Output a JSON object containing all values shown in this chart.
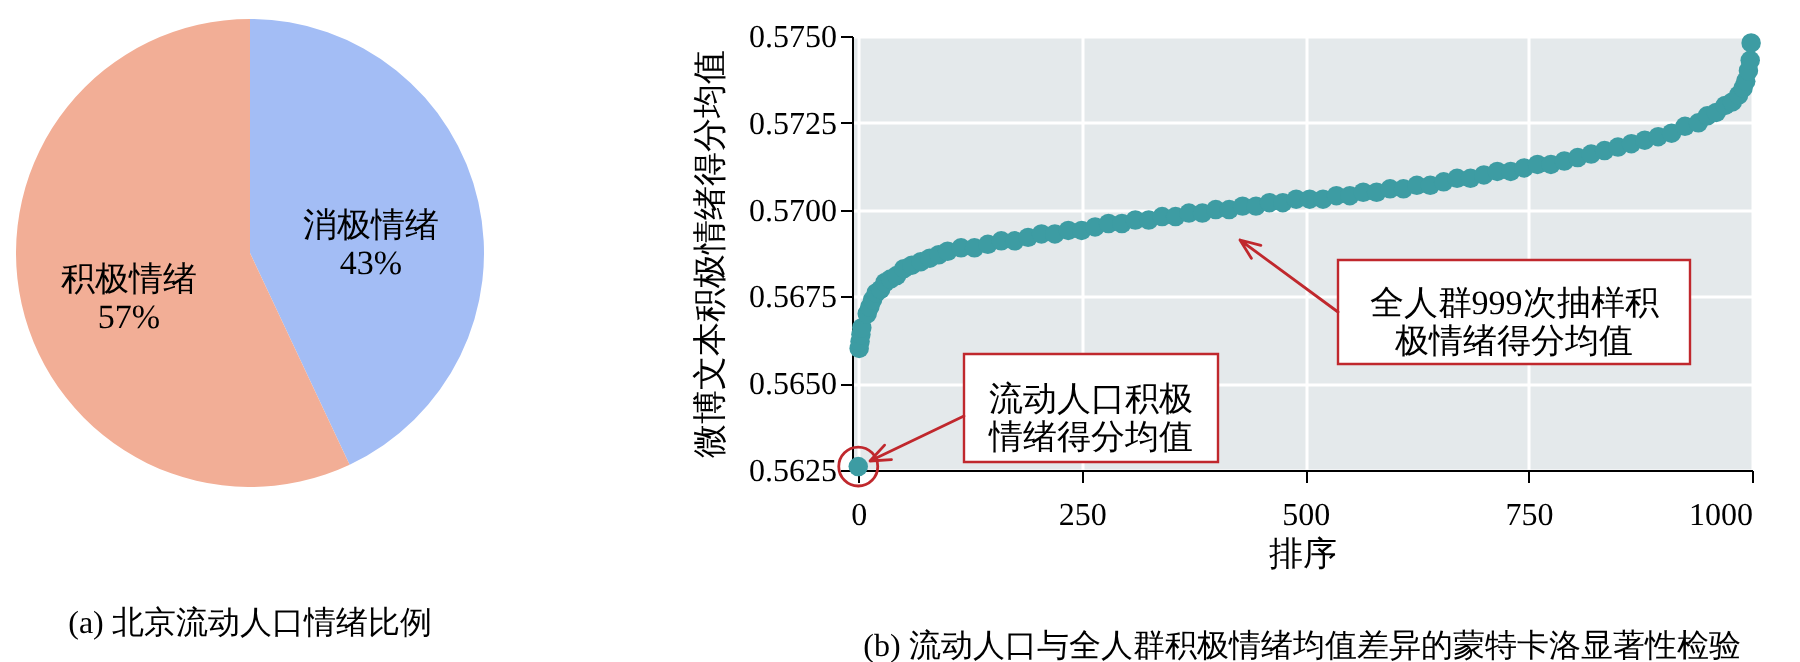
{
  "chart_data": [
    {
      "type": "pie",
      "title": "(a) 北京流动人口情绪比例",
      "categories": [
        "消极情绪",
        "积极情绪"
      ],
      "values": [
        43,
        57
      ],
      "colors": [
        "#a3bdf5",
        "#f2ae96"
      ],
      "value_labels": [
        "43%",
        "57%"
      ]
    },
    {
      "type": "scatter",
      "title": "(b) 流动人口与全人群积极情绪均值差异的蒙特卡洛显著性检验",
      "xlabel": "排序",
      "ylabel": "微博文本积极情绪得分均值",
      "xlim": [
        -7,
        1000
      ],
      "xticks": [
        0,
        250,
        500,
        750,
        1000
      ],
      "ylim": [
        0.5625,
        0.575
      ],
      "yticks": [
        {
          "value": 0.5625,
          "label": "0.5625"
        },
        {
          "value": 0.565,
          "label": "0.5650"
        },
        {
          "value": 0.5675,
          "label": "0.5675"
        },
        {
          "value": 0.57,
          "label": "0.5700"
        },
        {
          "value": 0.5725,
          "label": "0.5725"
        },
        {
          "value": 0.575,
          "label": "0.5750"
        }
      ],
      "grid": true,
      "marker": "circle",
      "series": [
        {
          "color": "#3d9ca3",
          "x": [
            0,
            1,
            2,
            3,
            4,
            10,
            13,
            16,
            20,
            25,
            30,
            36,
            43,
            51,
            60,
            70,
            80,
            90,
            100,
            115,
            130,
            145,
            160,
            175,
            190,
            205,
            220,
            235,
            250,
            265,
            280,
            295,
            310,
            325,
            340,
            355,
            370,
            385,
            400,
            415,
            430,
            445,
            460,
            475,
            490,
            505,
            520,
            535,
            550,
            565,
            580,
            595,
            610,
            625,
            640,
            655,
            670,
            685,
            700,
            715,
            730,
            745,
            760,
            775,
            790,
            805,
            820,
            835,
            850,
            865,
            880,
            895,
            910,
            925,
            940,
            950,
            960,
            970,
            978,
            985,
            990,
            993,
            996,
            998,
            999
          ],
          "values": [
            0.5626,
            0.566,
            0.5662,
            0.5664,
            0.5666,
            0.567,
            0.5672,
            0.5674,
            0.5676,
            0.5677,
            0.5679,
            0.568,
            0.5681,
            0.5683,
            0.5684,
            0.5685,
            0.5686,
            0.5687,
            0.5688,
            0.5689,
            0.5689,
            0.569,
            0.5691,
            0.5691,
            0.5692,
            0.5693,
            0.5693,
            0.5694,
            0.5694,
            0.5695,
            0.5696,
            0.5696,
            0.5697,
            0.5697,
            0.5698,
            0.5698,
            0.5699,
            0.5699,
            0.57,
            0.57,
            0.5701,
            0.5701,
            0.5702,
            0.5702,
            0.5703,
            0.5703,
            0.5703,
            0.5704,
            0.5704,
            0.5705,
            0.5705,
            0.5706,
            0.5706,
            0.5707,
            0.5707,
            0.5708,
            0.5709,
            0.5709,
            0.571,
            0.5711,
            0.5711,
            0.5712,
            0.5713,
            0.5713,
            0.5714,
            0.5715,
            0.5716,
            0.5717,
            0.5718,
            0.5719,
            0.572,
            0.5721,
            0.5722,
            0.5724,
            0.5725,
            0.5727,
            0.5728,
            0.573,
            0.5731,
            0.5733,
            0.5735,
            0.5737,
            0.574,
            0.5743,
            0.5748
          ]
        }
      ],
      "annotations": [
        "流动人口积极情绪得分均值",
        "全人群999次抽样积极情绪得分均值"
      ]
    }
  ]
}
